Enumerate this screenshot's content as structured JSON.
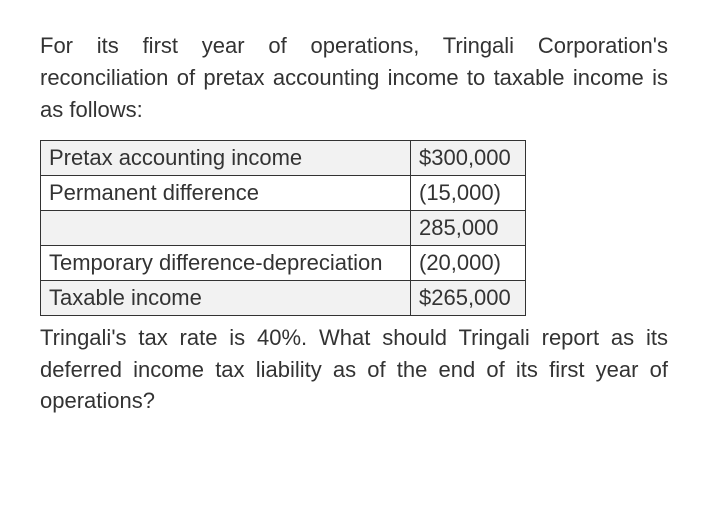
{
  "intro": "For its first year of operations, Tringali Corporation's reconciliation of pretax accounting income to taxable income is as follows:",
  "table": {
    "rows": [
      {
        "label": "Pretax accounting income",
        "value": "$300,000",
        "shaded": true
      },
      {
        "label": "Permanent difference",
        "value": "(15,000)",
        "shaded": false
      },
      {
        "label": "",
        "value": "285,000",
        "shaded": true
      },
      {
        "label": "Temporary difference-depreciation",
        "value": "(20,000)",
        "shaded": false
      },
      {
        "label": "Taxable income",
        "value": "$265,000",
        "shaded": true
      }
    ]
  },
  "outro": "Tringali's tax rate is 40%. What should Tringali report as its deferred income tax liability as of the end of its first year of operations?",
  "styling": {
    "font_family": "Segoe UI, Arial, sans-serif",
    "text_color": "#333333",
    "border_color": "#333333",
    "shaded_bg": "#f2f2f2",
    "body_bg": "#ffffff",
    "font_size_body": 22,
    "label_col_width": 370,
    "value_col_width": 115
  }
}
